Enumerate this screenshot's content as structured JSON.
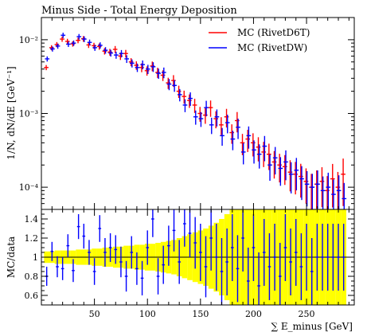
{
  "title": "Minus Side - Total Energy Deposition",
  "colors": {
    "d6t": "#ff0000",
    "dw": "#0000ff",
    "band": "#ffff00",
    "ref": "#000000"
  },
  "legend": {
    "placement": "top-right",
    "items": [
      {
        "label": "MC (RivetD6T)",
        "color": "#ff0000"
      },
      {
        "label": "MC (RivetDW)",
        "color": "#0000ff"
      }
    ]
  },
  "chart_data": [
    {
      "type": "scatter",
      "panel": "main",
      "ylabel": "1/N, dN/dE [GeV⁻¹]",
      "xlim": [
        0,
        295
      ],
      "ylim": [
        5e-05,
        0.02
      ],
      "yscale": "log",
      "yticks": [
        {
          "value": 0.01,
          "label": "10⁻²"
        },
        {
          "value": 0.001,
          "label": "10⁻³"
        },
        {
          "value": 0.0001,
          "label": "10⁻⁴"
        }
      ],
      "x": [
        5,
        10,
        15,
        20,
        25,
        30,
        35,
        40,
        45,
        50,
        55,
        60,
        65,
        70,
        75,
        80,
        85,
        90,
        95,
        100,
        105,
        110,
        115,
        120,
        125,
        130,
        135,
        140,
        145,
        150,
        155,
        160,
        165,
        170,
        175,
        180,
        185,
        190,
        195,
        200,
        205,
        210,
        215,
        220,
        225,
        230,
        235,
        240,
        245,
        250,
        255,
        260,
        265,
        270,
        275,
        280,
        285
      ],
      "series": [
        {
          "name": "MC (RivetD6T)",
          "color": "#ff0000",
          "values": [
            0.0042,
            0.0078,
            0.0086,
            0.0102,
            0.0095,
            0.0088,
            0.0098,
            0.0103,
            0.0085,
            0.0083,
            0.0081,
            0.007,
            0.0068,
            0.0074,
            0.006,
            0.0065,
            0.005,
            0.0045,
            0.0042,
            0.0038,
            0.0044,
            0.0036,
            0.0033,
            0.0026,
            0.0028,
            0.002,
            0.0017,
            0.0015,
            0.0013,
            0.001,
            0.00095,
            0.0012,
            0.00085,
            0.0007,
            0.0009,
            0.00055,
            0.0008,
            0.0004,
            0.00045,
            0.0004,
            0.00035,
            0.0003,
            0.00028,
            0.00022,
            0.0002,
            0.00019,
            0.00016,
            0.00015,
            0.00014,
            0.00012,
            0.0001,
            0.00011,
            0.00012,
            9e-05,
            0.00013,
            0.0001,
            0.00015
          ]
        },
        {
          "name": "MC (RivetDW)",
          "color": "#0000ff",
          "values": [
            0.0055,
            0.0075,
            0.0082,
            0.0115,
            0.0087,
            0.009,
            0.011,
            0.0102,
            0.0092,
            0.0078,
            0.0084,
            0.0072,
            0.0066,
            0.0062,
            0.0065,
            0.0055,
            0.0048,
            0.0042,
            0.0046,
            0.004,
            0.0043,
            0.0035,
            0.0036,
            0.0025,
            0.0024,
            0.0018,
            0.0013,
            0.0016,
            0.0009,
            0.00085,
            0.0012,
            0.0007,
            0.0009,
            0.0005,
            0.00075,
            0.00045,
            0.00065,
            0.0003,
            0.0005,
            0.00032,
            0.00028,
            0.00036,
            0.0002,
            0.00025,
            0.00018,
            0.00022,
            0.00015,
            0.00017,
            0.00013,
            0.00011,
            0.0001,
            0.00011,
            9e-05,
            0.0001,
            8e-05,
            9e-05,
            7e-05
          ]
        }
      ]
    },
    {
      "type": "scatter",
      "panel": "ratio",
      "ylabel": "MC/data",
      "xlabel": "∑ E_minus [GeV]",
      "xlim": [
        0,
        295
      ],
      "ylim": [
        0.5,
        1.5
      ],
      "yticks": [
        {
          "value": 0.6,
          "label": "0.6"
        },
        {
          "value": 0.8,
          "label": "0.8"
        },
        {
          "value": 1.0,
          "label": "1"
        },
        {
          "value": 1.2,
          "label": "1.2"
        },
        {
          "value": 1.4,
          "label": "1.4"
        }
      ],
      "xticks": [
        {
          "value": 50,
          "label": "50"
        },
        {
          "value": 100,
          "label": "100"
        },
        {
          "value": 150,
          "label": "150"
        },
        {
          "value": 200,
          "label": "200"
        },
        {
          "value": 250,
          "label": "250"
        }
      ],
      "reference": 1.0,
      "x": [
        5,
        10,
        15,
        20,
        25,
        30,
        35,
        40,
        45,
        50,
        55,
        60,
        65,
        70,
        75,
        80,
        85,
        90,
        95,
        100,
        105,
        110,
        115,
        120,
        125,
        130,
        135,
        140,
        145,
        150,
        155,
        160,
        165,
        170,
        175,
        180,
        185,
        190,
        195,
        200,
        205,
        210,
        215,
        220,
        225,
        230,
        235,
        240,
        245,
        250,
        255,
        260,
        265,
        270,
        275,
        280,
        285
      ],
      "band_halfwidth": [
        0.06,
        0.06,
        0.07,
        0.07,
        0.07,
        0.07,
        0.08,
        0.08,
        0.08,
        0.09,
        0.09,
        0.1,
        0.1,
        0.11,
        0.11,
        0.12,
        0.12,
        0.13,
        0.13,
        0.14,
        0.14,
        0.15,
        0.16,
        0.17,
        0.18,
        0.2,
        0.22,
        0.24,
        0.26,
        0.28,
        0.3,
        0.33,
        0.36,
        0.4,
        0.45,
        0.5,
        0.5,
        0.5,
        0.5,
        0.5,
        0.5,
        0.5,
        0.5,
        0.5,
        0.5,
        0.5,
        0.5,
        0.5,
        0.5,
        0.5,
        0.5,
        0.5,
        0.5,
        0.5,
        0.5,
        0.5,
        0.5
      ],
      "series": [
        {
          "name": "MC (RivetDW)",
          "color": "#0000ff",
          "values": [
            0.8,
            1.06,
            0.9,
            0.88,
            1.12,
            0.86,
            1.32,
            1.22,
            1.05,
            0.85,
            1.3,
            1.05,
            1.1,
            1.08,
            0.95,
            0.8,
            1.05,
            0.88,
            0.78,
            1.1,
            1.4,
            0.8,
            0.92,
            1.12,
            1.28,
            0.95,
            1.35,
            1.25,
            1.15,
            1.05,
            0.9,
            1.2,
            1.0,
            0.85,
            0.95,
            1.1,
            0.88,
            1.2,
            0.75,
            1.1,
            0.7,
            1.05,
            0.9,
            1.0,
            0.8,
            1.1,
            0.95,
            1.05,
            0.9,
            1.0,
            0.85,
            1.0,
            1.0,
            1.0,
            1.0,
            1.0,
            1.0
          ],
          "errors": [
            0.1,
            0.1,
            0.11,
            0.12,
            0.12,
            0.12,
            0.13,
            0.13,
            0.13,
            0.14,
            0.14,
            0.15,
            0.15,
            0.15,
            0.16,
            0.16,
            0.17,
            0.17,
            0.18,
            0.18,
            0.19,
            0.19,
            0.2,
            0.21,
            0.22,
            0.23,
            0.24,
            0.25,
            0.27,
            0.3,
            0.32,
            0.34,
            0.35,
            0.35,
            0.35,
            0.35,
            0.35,
            0.35,
            0.35,
            0.35,
            0.35,
            0.35,
            0.35,
            0.35,
            0.35,
            0.35,
            0.35,
            0.35,
            0.35,
            0.35,
            0.35,
            0.35,
            0.35,
            0.35,
            0.35,
            0.35,
            0.35
          ]
        }
      ]
    }
  ]
}
